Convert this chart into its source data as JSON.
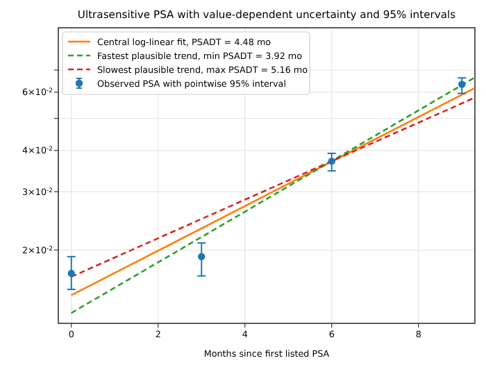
{
  "chart_data": {
    "type": "line",
    "title": "Ultrasensitive PSA with value-dependent uncertainty and 95% intervals",
    "xlabel": "Months since first listed PSA",
    "log": "y",
    "grid": true,
    "legend": "top left",
    "xlim": [
      -0.3,
      9.3
    ],
    "xticks": [
      0,
      2,
      4,
      6,
      8
    ],
    "ylim": [
      0.012,
      0.094
    ],
    "yticks": [
      {
        "value": 0.02,
        "label": "2×10$^{-2}$"
      },
      {
        "value": 0.03,
        "label": "3×10$^{-2}$"
      },
      {
        "value": 0.04,
        "label": "4×10$^{-2}$"
      },
      {
        "value": 0.05,
        "label": null
      },
      {
        "value": 0.06,
        "label": "6×10$^{-2}$"
      },
      {
        "value": 0.07,
        "label": null
      }
    ],
    "series": [
      {
        "name": "Central log-linear fit, PSADT = 4.48 mo",
        "line_style": "solid",
        "color": "#ff7f0e",
        "x": [
          0,
          9.3
        ],
        "values": [
          0.0146,
          0.0618
        ]
      },
      {
        "name": "Fastest plausible trend, min PSADT = 3.92 mo",
        "line_style": "dashed",
        "color": "#2ca02c",
        "x": [
          0,
          9.3
        ],
        "values": [
          0.0129,
          0.0665
        ]
      },
      {
        "name": "Slowest plausible trend, max PSADT = 5.16 mo",
        "line_style": "dashed",
        "color": "#d62728",
        "x": [
          0,
          9.3
        ],
        "values": [
          0.0166,
          0.0578
        ]
      },
      {
        "name": "Observed PSA with pointwise 95% interval",
        "type": "scatter",
        "marker": "circle",
        "color": "#1f77b4",
        "x": [
          0,
          3,
          6,
          9
        ],
        "values": [
          0.017,
          0.0191,
          0.0371,
          0.0634
        ],
        "errors": [
          [
            0.0152,
            0.0191
          ],
          [
            0.0167,
            0.021
          ],
          [
            0.0347,
            0.0392
          ],
          [
            0.0595,
            0.0663
          ]
        ]
      }
    ]
  }
}
